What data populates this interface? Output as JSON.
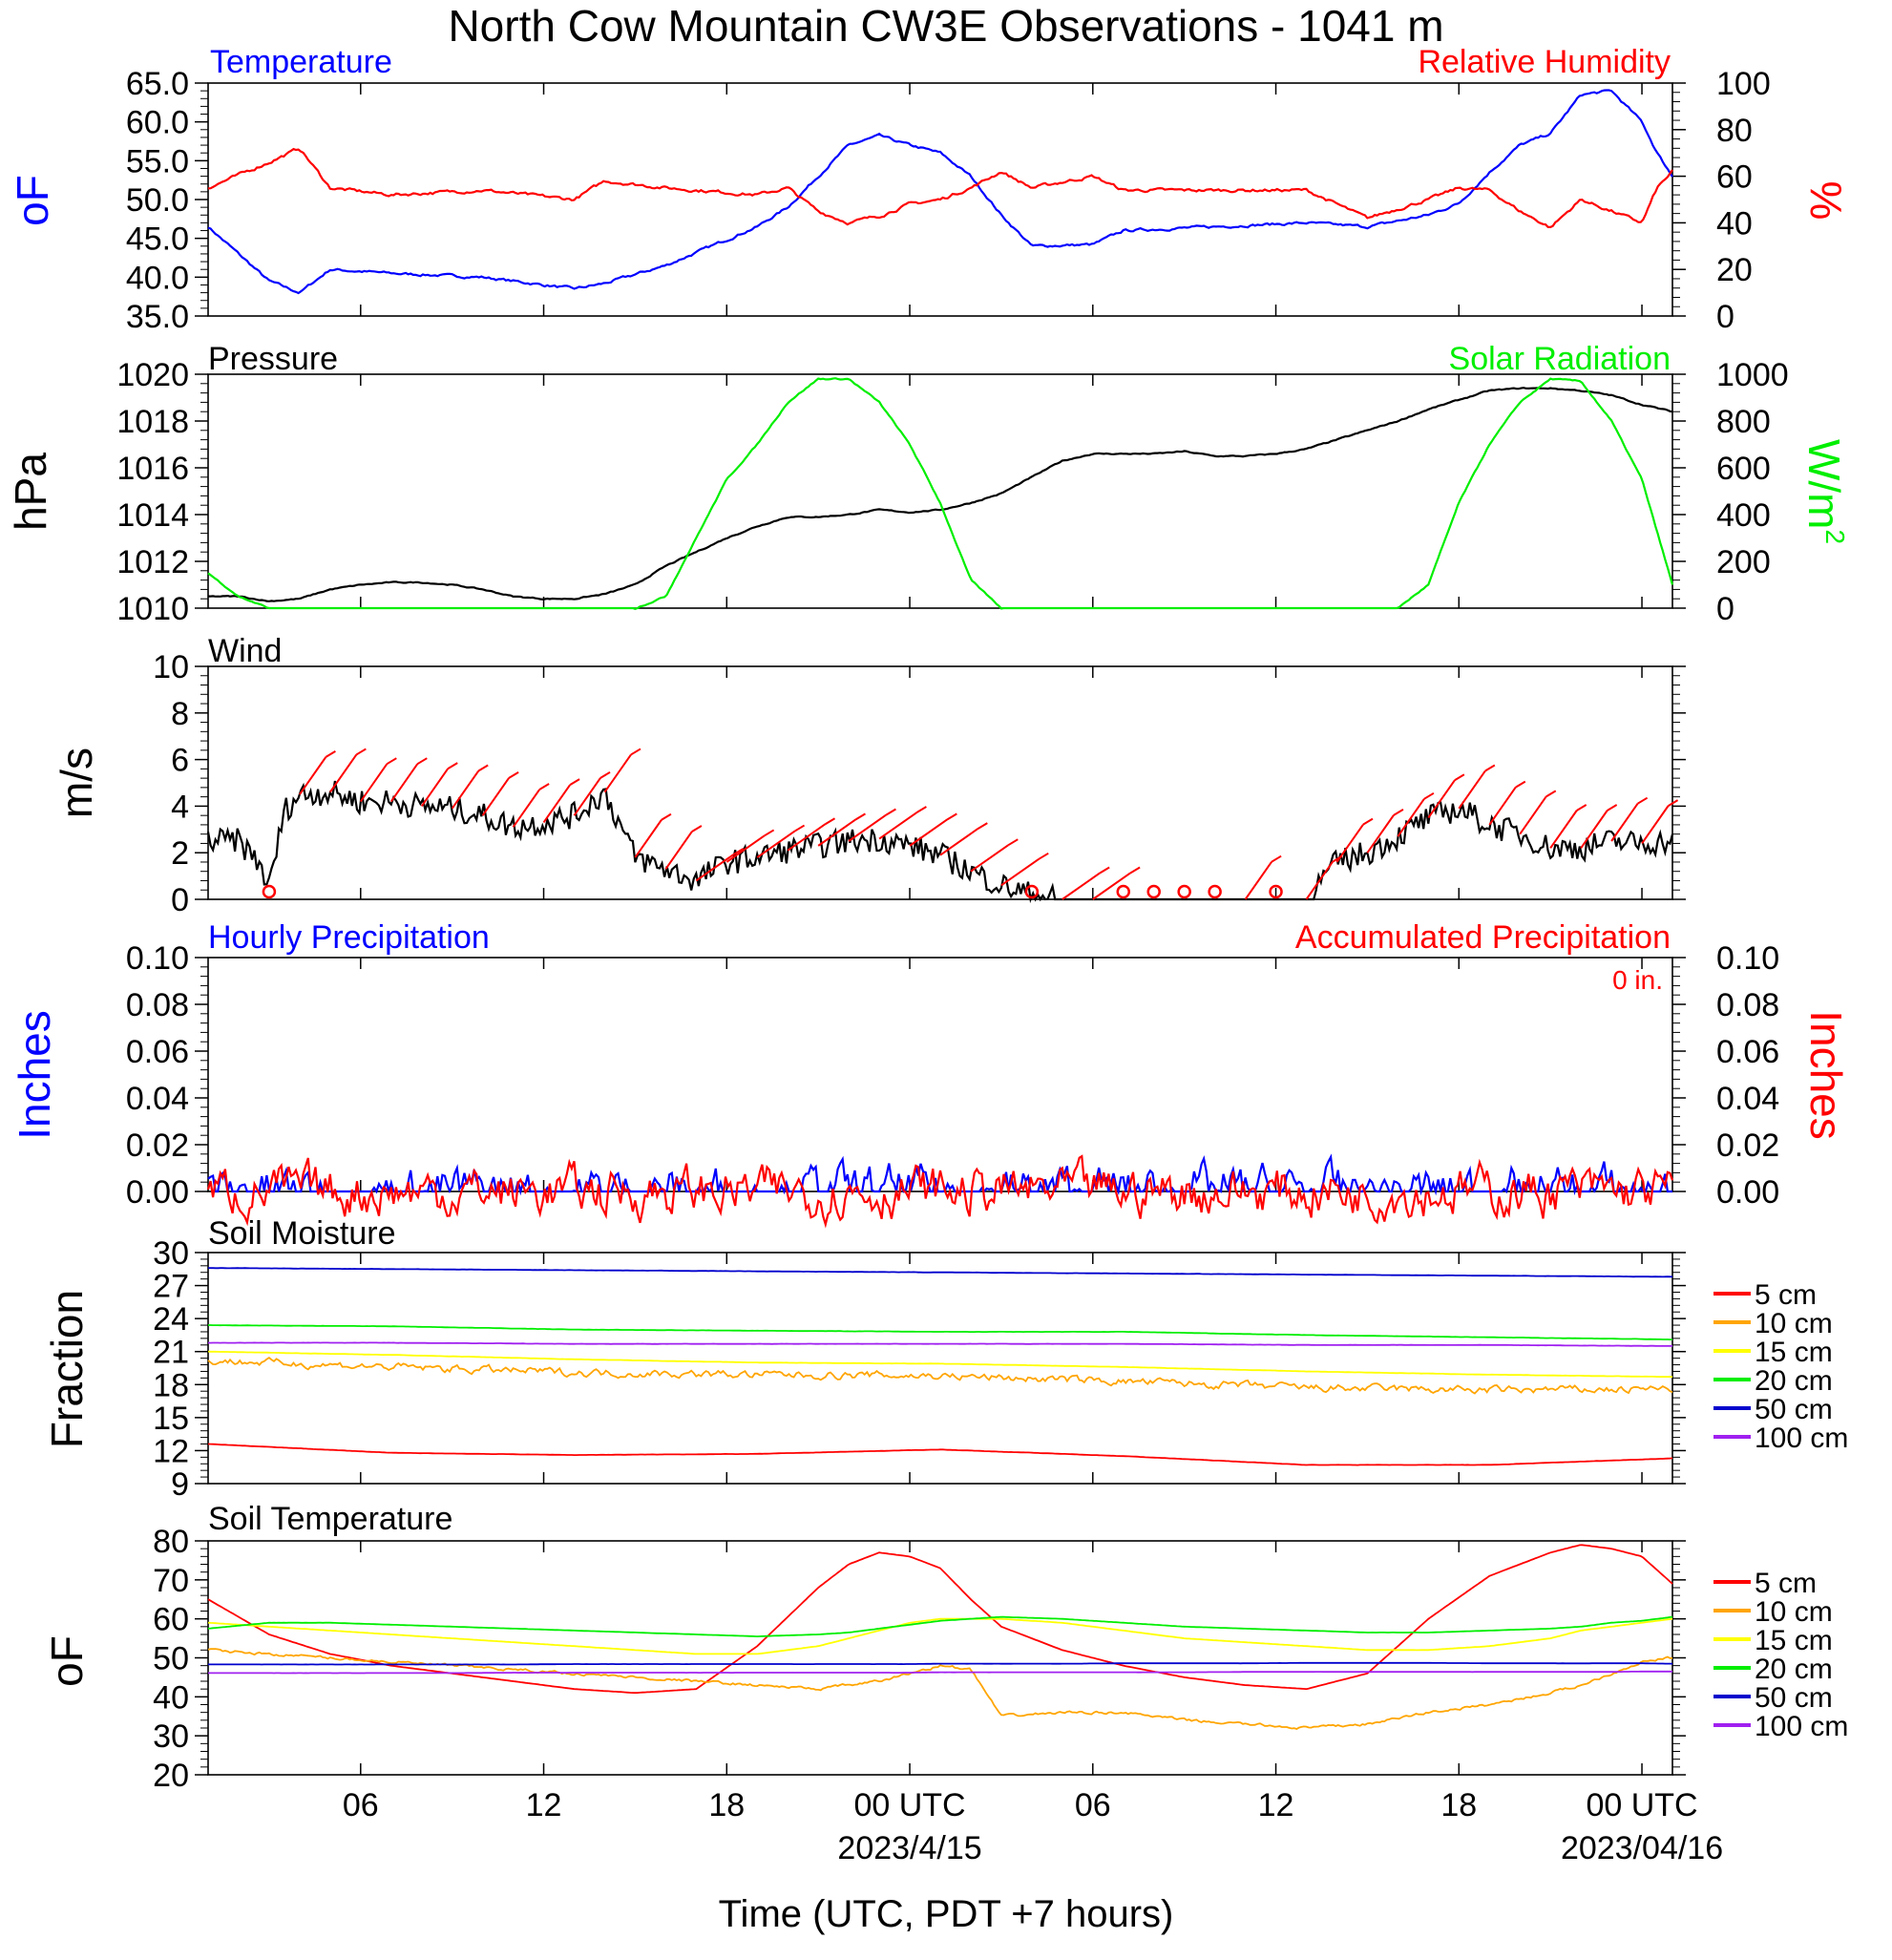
{
  "figure": {
    "title": "North Cow Mountain CW3E Observations - 1041 m",
    "xlabel": "Time (UTC, PDT +7 hours)"
  },
  "colors": {
    "blue": "#0000ff",
    "red": "#ff0000",
    "green": "#00ee00",
    "black": "#000000",
    "orange": "#ffa500",
    "yellow": "#ffff00",
    "navy": "#0000cd",
    "purple": "#a020f0"
  },
  "chart_data": [
    {
      "type": "line",
      "panel": "temp_rh",
      "title_left": "Temperature",
      "title_right": "Relative Humidity",
      "ylabel_left": "oF",
      "ylabel_right": "%",
      "ylim": [
        35,
        65
      ],
      "yticks": [
        "35.0",
        "40.0",
        "45.0",
        "50.0",
        "55.0",
        "60.0",
        "65.0"
      ],
      "ylim_right": [
        0,
        100
      ],
      "yticks_right": [
        "0",
        "20",
        "40",
        "60",
        "80",
        "100"
      ],
      "x_hours": [
        0,
        2,
        3,
        4,
        6,
        9,
        12,
        13,
        15,
        18,
        19,
        20,
        21,
        22,
        23,
        24,
        25,
        26,
        27,
        29,
        30,
        33,
        36,
        38,
        40,
        41,
        42,
        43,
        44,
        45,
        46,
        47,
        47.5,
        48
      ],
      "series": [
        {
          "name": "Temperature",
          "axis": "left",
          "color": "blue",
          "values": [
            46.5,
            39.5,
            38.0,
            41.0,
            40.5,
            40.0,
            38.5,
            39.2,
            41.5,
            46.5,
            49.0,
            53.0,
            57.0,
            58.2,
            57.0,
            56.0,
            53.0,
            48.0,
            44.0,
            44.2,
            46.0,
            46.5,
            47.0,
            46.5,
            48.0,
            49.5,
            53.5,
            57.0,
            58.5,
            63.5,
            64.0,
            60.0,
            56.0,
            53.0
          ]
        },
        {
          "name": "Relative Humidity",
          "axis": "right",
          "color": "red",
          "values": [
            55,
            66,
            72,
            55,
            52,
            54,
            50,
            58,
            55,
            52,
            55,
            45,
            40,
            43,
            48,
            50,
            55,
            62,
            55,
            60,
            54,
            54,
            54,
            42,
            50,
            55,
            54,
            45,
            38,
            50,
            45,
            40,
            55,
            62
          ]
        }
      ]
    },
    {
      "type": "line",
      "panel": "pressure_solar",
      "title_left": "Pressure",
      "title_right": "Solar Radiation",
      "ylabel_left": "hPa",
      "ylabel_right": "W/m",
      "ylabel_right_sup": "2",
      "ylim": [
        1010,
        1020
      ],
      "yticks": [
        "1010",
        "1012",
        "1014",
        "1016",
        "1018",
        "1020"
      ],
      "ylim_right": [
        0,
        1000
      ],
      "yticks_right": [
        "0",
        "200",
        "400",
        "600",
        "800",
        "1000"
      ],
      "x_hours": [
        0,
        1,
        2,
        3,
        4,
        5,
        6,
        7,
        8,
        9,
        10,
        11,
        12,
        13,
        14,
        15,
        16,
        17,
        18,
        19,
        20,
        21,
        22,
        23,
        24,
        25,
        26,
        27,
        28,
        29,
        30,
        31,
        32,
        33,
        34,
        35,
        36,
        37,
        38,
        39,
        40,
        41,
        42,
        43,
        44,
        45,
        46,
        47,
        48
      ],
      "series": [
        {
          "name": "Pressure",
          "axis": "left",
          "color": "black",
          "values": [
            1010.5,
            1010.5,
            1010.3,
            1010.4,
            1010.8,
            1011.0,
            1011.1,
            1011.1,
            1011.0,
            1010.8,
            1010.5,
            1010.4,
            1010.4,
            1010.6,
            1011.0,
            1011.8,
            1012.4,
            1013.0,
            1013.5,
            1013.9,
            1013.9,
            1014.0,
            1014.2,
            1014.1,
            1014.2,
            1014.5,
            1014.9,
            1015.6,
            1016.3,
            1016.6,
            1016.6,
            1016.6,
            1016.7,
            1016.5,
            1016.5,
            1016.6,
            1016.8,
            1017.2,
            1017.6,
            1018.0,
            1018.5,
            1018.9,
            1019.3,
            1019.4,
            1019.4,
            1019.3,
            1019.1,
            1018.7,
            1018.4
          ]
        },
        {
          "name": "Solar Radiation",
          "axis": "right",
          "color": "green",
          "values": [
            150,
            50,
            0,
            0,
            0,
            0,
            0,
            0,
            0,
            0,
            0,
            0,
            0,
            0,
            0,
            50,
            300,
            550,
            700,
            880,
            980,
            980,
            880,
            700,
            450,
            120,
            0,
            0,
            0,
            0,
            0,
            0,
            0,
            0,
            0,
            0,
            0,
            0,
            0,
            0,
            100,
            450,
            700,
            880,
            980,
            970,
            800,
            550,
            100
          ]
        }
      ]
    },
    {
      "type": "line",
      "panel": "wind",
      "title_left": "Wind",
      "ylabel_left": "m/s",
      "ylim": [
        0,
        10
      ],
      "yticks": [
        "0",
        "2",
        "4",
        "6",
        "8",
        "10"
      ],
      "x_hours": [
        0,
        1,
        1.7,
        2,
        2.5,
        3,
        4,
        5,
        6,
        7,
        8,
        9,
        10,
        11,
        12,
        13,
        14,
        15,
        16,
        17,
        18,
        19,
        20,
        21,
        22,
        23,
        24,
        25,
        26,
        27,
        28,
        29,
        30,
        31,
        32,
        33,
        34,
        35,
        36,
        37,
        38,
        39,
        40,
        41,
        42,
        43,
        44,
        45,
        46,
        47,
        48
      ],
      "series": [
        {
          "name": "Wind",
          "axis": "left",
          "color": "black",
          "values": [
            2.5,
            2.5,
            1.5,
            0.5,
            3.8,
            4.5,
            4.6,
            4.2,
            4.2,
            4.0,
            3.9,
            3.6,
            3.1,
            3.3,
            3.6,
            4.6,
            1.8,
            1.3,
            0.8,
            1.6,
            1.8,
            2.1,
            2.3,
            2.5,
            2.6,
            2.3,
            1.9,
            1.2,
            0.6,
            0.2,
            0.0,
            0.0,
            0.0,
            0.0,
            0.0,
            0.0,
            0.0,
            0.0,
            0.0,
            1.6,
            2.0,
            2.7,
            3.5,
            3.9,
            3.2,
            2.8,
            2.2,
            2.2,
            2.5,
            2.4,
            2.5
          ]
        }
      ],
      "barb_hours": [
        2,
        3,
        4,
        5,
        6,
        7,
        8,
        9,
        10,
        11,
        12,
        13,
        14,
        15,
        16,
        17,
        18,
        19,
        20,
        21,
        22,
        23,
        24,
        25,
        26,
        27,
        28,
        29,
        30,
        31,
        32,
        33,
        34,
        35,
        36,
        37,
        38,
        39,
        40,
        41,
        42,
        43,
        44,
        45,
        46,
        47
      ],
      "calm_hours": [
        2,
        27,
        30,
        31,
        32,
        33,
        35
      ]
    },
    {
      "type": "line",
      "panel": "precip",
      "title_left": "Hourly Precipitation",
      "title_right": "Accumulated Precipitation",
      "annotation": "0 in.",
      "ylabel_left": "Inches",
      "ylabel_right": "Inches",
      "ylim": [
        0,
        0.1
      ],
      "yticks": [
        "0.00",
        "0.02",
        "0.04",
        "0.06",
        "0.08",
        "0.10"
      ],
      "ylim_right": [
        0,
        0.1
      ],
      "yticks_right": [
        "0.00",
        "0.02",
        "0.04",
        "0.06",
        "0.08",
        "0.10"
      ],
      "x_hours": [
        0,
        48
      ],
      "series": [
        {
          "name": "Hourly Precipitation",
          "axis": "left",
          "color": "blue",
          "values": [
            0,
            0
          ]
        },
        {
          "name": "Accumulated Precipitation",
          "axis": "right",
          "color": "red",
          "values": [
            0,
            0
          ]
        }
      ]
    },
    {
      "type": "line",
      "panel": "soil_moisture",
      "title_left": "Soil Moisture",
      "ylabel_left": "Fraction",
      "ylim": [
        9,
        30
      ],
      "yticks": [
        "9",
        "12",
        "15",
        "18",
        "21",
        "24",
        "27",
        "30"
      ],
      "x_hours": [
        0,
        6,
        12,
        18,
        24,
        30,
        36,
        42,
        48
      ],
      "series": [
        {
          "name": "5 cm",
          "axis": "left",
          "color": "red",
          "values": [
            12.6,
            11.8,
            11.6,
            11.7,
            12.1,
            11.5,
            10.7,
            10.7,
            11.3
          ]
        },
        {
          "name": "10 cm",
          "axis": "left",
          "color": "orange",
          "values": [
            20.2,
            19.6,
            19.1,
            18.9,
            18.8,
            18.3,
            17.7,
            17.5,
            17.6
          ]
        },
        {
          "name": "15 cm",
          "axis": "left",
          "color": "yellow",
          "values": [
            21.0,
            20.7,
            20.3,
            20.0,
            19.9,
            19.6,
            19.2,
            18.9,
            18.7
          ]
        },
        {
          "name": "20 cm",
          "axis": "left",
          "color": "green",
          "values": [
            23.4,
            23.3,
            23.0,
            22.9,
            22.8,
            22.8,
            22.5,
            22.3,
            22.1
          ]
        },
        {
          "name": "50 cm",
          "axis": "left",
          "color": "navy",
          "values": [
            28.6,
            28.5,
            28.4,
            28.3,
            28.2,
            28.1,
            28.0,
            27.9,
            27.8
          ]
        },
        {
          "name": "100 cm",
          "axis": "left",
          "color": "purple",
          "values": [
            21.8,
            21.8,
            21.7,
            21.7,
            21.7,
            21.7,
            21.6,
            21.6,
            21.5
          ]
        }
      ]
    },
    {
      "type": "line",
      "panel": "soil_temp",
      "title_left": "Soil Temperature",
      "ylabel_left": "oF",
      "ylim": [
        20,
        80
      ],
      "yticks": [
        "20",
        "30",
        "40",
        "50",
        "60",
        "70",
        "80"
      ],
      "x_hours": [
        0,
        2,
        4,
        6,
        8,
        10,
        12,
        14,
        16,
        18,
        20,
        21,
        22,
        23,
        24,
        25,
        26,
        28,
        30,
        32,
        34,
        36,
        38,
        40,
        42,
        44,
        45,
        46,
        47,
        48
      ],
      "series": [
        {
          "name": "5 cm",
          "axis": "left",
          "color": "red",
          "values": [
            65,
            56,
            51,
            48,
            46,
            44,
            42,
            41,
            42,
            53,
            68,
            74,
            77,
            76,
            73,
            65,
            58,
            52,
            48,
            45,
            43,
            42,
            46,
            60,
            71,
            77,
            79,
            78,
            76,
            69
          ]
        },
        {
          "name": "10 cm",
          "axis": "left",
          "color": "orange",
          "values": [
            52,
            51,
            50,
            49,
            48,
            47,
            46,
            45,
            44,
            43,
            42,
            43,
            44,
            46,
            48,
            47,
            35,
            36,
            36,
            34,
            33,
            32,
            33,
            36,
            38,
            41,
            43,
            46,
            49,
            50
          ]
        },
        {
          "name": "15 cm",
          "axis": "left",
          "color": "yellow",
          "values": [
            59,
            58,
            57,
            56,
            55,
            54,
            53,
            52,
            51,
            51,
            53,
            55,
            57,
            59,
            60,
            60,
            60,
            59,
            57,
            55,
            54,
            53,
            52,
            52,
            53,
            55,
            57,
            58,
            59,
            60
          ]
        },
        {
          "name": "20 cm",
          "axis": "left",
          "color": "green",
          "values": [
            57.5,
            59,
            59,
            58.5,
            58,
            57.5,
            57,
            56.5,
            56,
            55.5,
            56,
            56.5,
            57.5,
            58.5,
            59.5,
            60,
            60.5,
            60,
            59,
            58,
            57.5,
            57,
            56.5,
            56.5,
            57,
            57.5,
            58,
            59,
            59.5,
            60.5
          ]
        },
        {
          "name": "50 cm",
          "axis": "left",
          "color": "navy",
          "values": [
            48.3,
            48.3,
            48.3,
            48.3,
            48.3,
            48.3,
            48.4,
            48.4,
            48.4,
            48.4,
            48.4,
            48.4,
            48.4,
            48.4,
            48.5,
            48.5,
            48.5,
            48.5,
            48.6,
            48.6,
            48.6,
            48.7,
            48.7,
            48.7,
            48.6,
            48.6,
            48.6,
            48.6,
            48.6,
            48.5
          ]
        },
        {
          "name": "100 cm",
          "axis": "left",
          "color": "purple",
          "values": [
            46.1,
            46.1,
            46.1,
            46.1,
            46.1,
            46.2,
            46.2,
            46.2,
            46.2,
            46.2,
            46.2,
            46.2,
            46.2,
            46.2,
            46.3,
            46.3,
            46.3,
            46.3,
            46.3,
            46.3,
            46.4,
            46.4,
            46.4,
            46.4,
            46.4,
            46.4,
            46.4,
            46.4,
            46.5,
            46.5
          ]
        }
      ],
      "xticks": [
        {
          "hour": 5,
          "label": "06"
        },
        {
          "hour": 11,
          "label": "12"
        },
        {
          "hour": 17,
          "label": "18"
        },
        {
          "hour": 23,
          "label": "00 UTC",
          "date": "2023/4/15"
        },
        {
          "hour": 29,
          "label": "06"
        },
        {
          "hour": 35,
          "label": "12"
        },
        {
          "hour": 41,
          "label": "18"
        },
        {
          "hour": 47,
          "label": "00 UTC",
          "date": "2023/04/16"
        }
      ]
    }
  ]
}
